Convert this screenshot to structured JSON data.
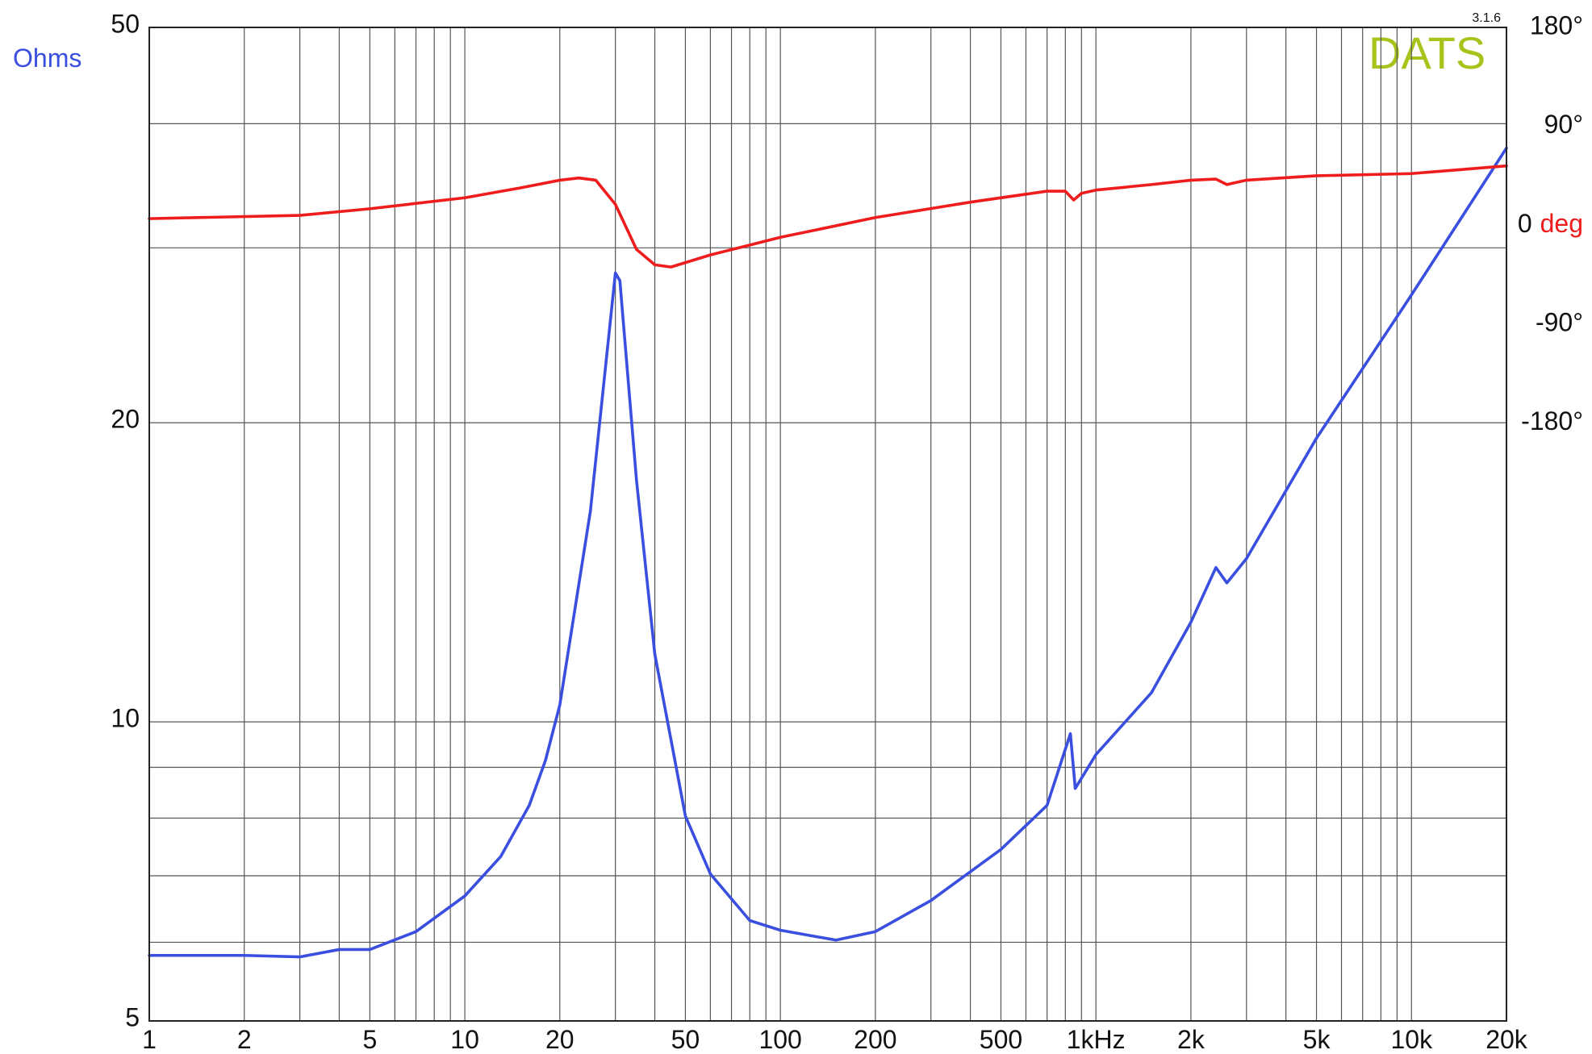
{
  "chart_data": {
    "type": "line",
    "logo": "DATS",
    "version": "3.1.6",
    "y_label": "Ohms",
    "y2_label": "deg",
    "xlog": true,
    "ylog": true,
    "grid": true,
    "xlim": [
      1,
      20000
    ],
    "ylim": [
      5,
      50
    ],
    "y2lim": [
      -724,
      180
    ],
    "xticks": [
      1,
      2,
      5,
      10,
      20,
      50,
      100,
      200,
      500,
      {
        "value": 1000,
        "label": "1kHz"
      },
      {
        "value": 2000,
        "label": "2k"
      },
      {
        "value": 5000,
        "label": "5k"
      },
      {
        "value": 10000,
        "label": "10k"
      },
      {
        "value": 20000,
        "label": "20k"
      }
    ],
    "minor_xticks": [
      3,
      4,
      6,
      7,
      8,
      9,
      30,
      40,
      60,
      70,
      80,
      90,
      300,
      400,
      600,
      700,
      800,
      900,
      3000,
      4000,
      6000,
      7000,
      8000,
      9000
    ],
    "yticks": [
      5,
      10,
      20,
      50
    ],
    "minor_yticks": [
      6,
      7,
      8,
      9,
      30,
      40
    ],
    "y2ticks": [
      {
        "value": 180,
        "label": "180°"
      },
      {
        "value": 90,
        "label": "90°"
      },
      0,
      {
        "value": -90,
        "label": "-90°"
      },
      {
        "value": -180,
        "label": "-180°"
      }
    ],
    "series": [
      {
        "color": "#3a4ee0",
        "x": [
          1,
          2,
          3,
          4,
          5,
          7,
          10,
          13,
          16,
          18,
          20,
          25,
          30,
          31,
          35,
          40,
          50,
          60,
          80,
          100,
          150,
          200,
          300,
          500,
          700,
          830,
          860,
          1000,
          1500,
          2000,
          2400,
          2600,
          3000,
          5000,
          10000,
          20000
        ],
        "values": [
          5.82,
          5.82,
          5.8,
          5.9,
          5.9,
          6.15,
          6.68,
          7.32,
          8.24,
          9.14,
          10.4,
          16.3,
          28.3,
          27.8,
          17.5,
          11.7,
          8.04,
          7.03,
          6.31,
          6.17,
          6.03,
          6.15,
          6.61,
          7.44,
          8.24,
          9.73,
          8.57,
          9.27,
          10.7,
          12.6,
          14.3,
          13.8,
          14.6,
          19.3,
          26.9,
          37.8
        ]
      },
      {
        "color": "#ee1c1c",
        "axis": "y2",
        "x": [
          1,
          3,
          5,
          10,
          15,
          20,
          23,
          26,
          30,
          35,
          40,
          45,
          60,
          80,
          100,
          200,
          400,
          700,
          800,
          850,
          900,
          1000,
          1500,
          2000,
          2400,
          2600,
          3000,
          5000,
          10000,
          20000
        ],
        "values": [
          6,
          9,
          15,
          25,
          34,
          41,
          43,
          41,
          19,
          -22,
          -36,
          -38,
          -27,
          -18,
          -11,
          7,
          21,
          31,
          31,
          23,
          29,
          32,
          37,
          41,
          42,
          37,
          41,
          45,
          47,
          54
        ]
      }
    ]
  }
}
